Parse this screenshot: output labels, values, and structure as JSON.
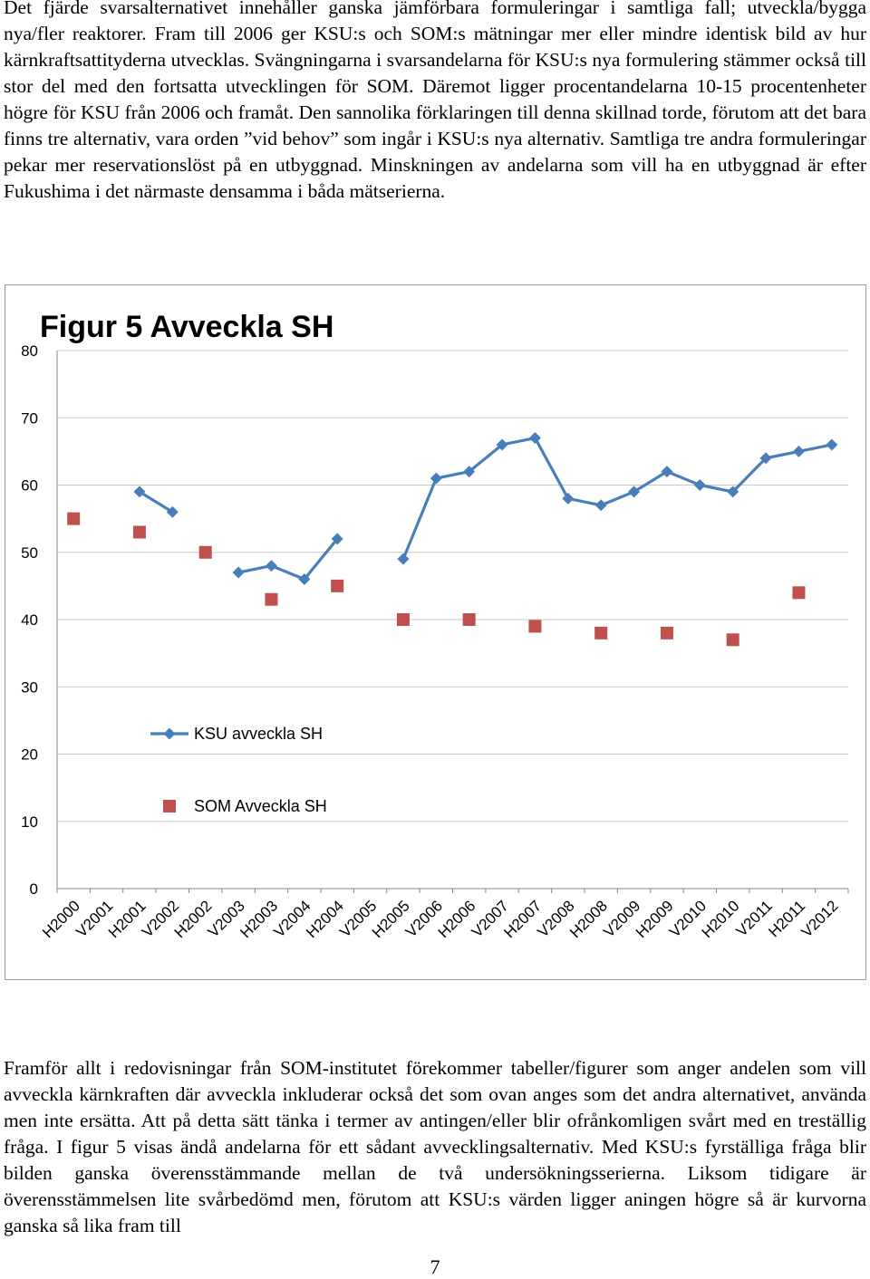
{
  "document": {
    "paragraph_top": "Det fjärde svarsalternativet innehåller ganska jämförbara formuleringar i samtliga fall; utveckla/bygga nya/fler reaktorer. Fram till 2006 ger KSU:s och SOM:s mätningar mer eller mindre identisk bild av hur kärnkraftsattityderna utvecklas. Svängningarna i svarsandelarna för KSU:s nya formulering stämmer också till stor del med den fortsatta utvecklingen för SOM. Däremot ligger procentandelarna 10-15 procentenheter högre för KSU från 2006 och framåt. Den sannolika förklaringen till denna skillnad torde, förutom att det bara finns tre alternativ, vara orden ”vid behov” som ingår i KSU:s nya alternativ. Samtliga tre andra formuleringar pekar mer reservationslöst på en utbyggnad. Minskningen av andelarna som vill ha en utbyggnad är efter Fukushima i det närmaste densamma i båda mätserierna.",
    "paragraph_bottom": "Framför allt i redovisningar från SOM-institutet förekommer tabeller/figurer som anger andelen som vill avveckla kärnkraften där avveckla inkluderar också det som ovan anges som det andra alternativet, använda men inte ersätta. Att på detta sätt tänka i termer av antingen/eller blir ofrånkomligen svårt med en treställig fråga. I figur 5 visas ändå andelarna för ett sådant avvecklingsalternativ. Med KSU:s fyrställiga fråga blir bilden ganska överensstämmande mellan de två undersökningsserierna. Liksom tidigare är överensstämmelsen lite svårbedömd men, förutom att KSU:s värden ligger aningen högre så är kurvorna ganska så lika fram till",
    "page_number": "7"
  },
  "chart_data": {
    "type": "line",
    "title": "Figur 5 Avveckla SH",
    "xlabel": "",
    "ylabel": "",
    "ylim": [
      0,
      80
    ],
    "yticks": [
      0,
      10,
      20,
      30,
      40,
      50,
      60,
      70,
      80
    ],
    "grid": true,
    "legend_position": "left-lower",
    "categories": [
      "H2000",
      "V2001",
      "H2001",
      "V2002",
      "H2002",
      "V2003",
      "H2003",
      "V2004",
      "H2004",
      "V2005",
      "H2005",
      "V2006",
      "H2006",
      "V2007",
      "H2007",
      "V2008",
      "H2008",
      "V2009",
      "H2009",
      "V2010",
      "H2010",
      "V2011",
      "H2011",
      "V2012"
    ],
    "series": [
      {
        "name": "KSU avveckla SH",
        "color": "#4a7ebb",
        "marker": "diamond",
        "line": true,
        "values": [
          null,
          null,
          59,
          56,
          null,
          47,
          48,
          46,
          52,
          null,
          49,
          61,
          62,
          66,
          67,
          58,
          57,
          59,
          62,
          60,
          59,
          64,
          65,
          66
        ]
      },
      {
        "name": "SOM Avveckla SH",
        "color": "#c0504d",
        "marker": "square",
        "line": false,
        "values": [
          55,
          null,
          53,
          null,
          50,
          null,
          43,
          null,
          45,
          null,
          40,
          null,
          40,
          null,
          39,
          null,
          38,
          null,
          38,
          null,
          37,
          null,
          44,
          null
        ]
      }
    ]
  }
}
